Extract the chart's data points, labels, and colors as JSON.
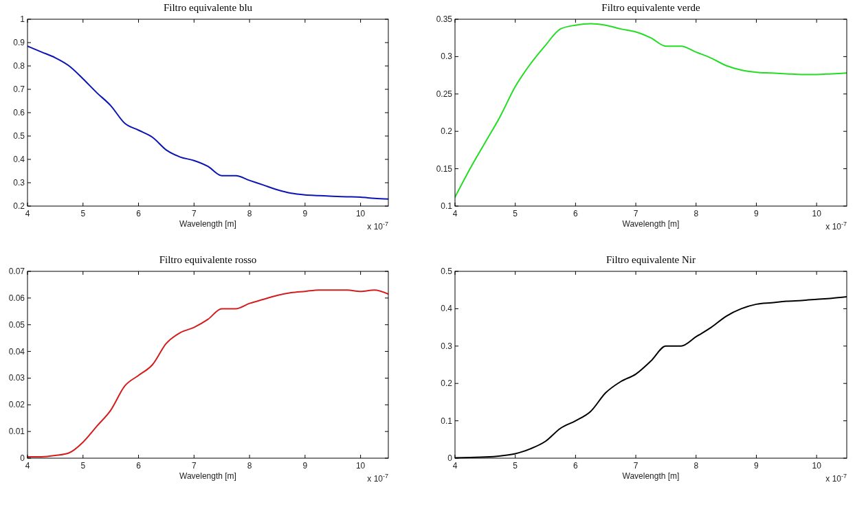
{
  "chart_data": [
    {
      "type": "line",
      "title": "Filtro equivalente blu",
      "xlabel": "Wavelength [m]",
      "annotations": [
        "x 10$^{-7}$"
      ],
      "xlim": [
        4,
        10.5
      ],
      "xticks": [
        4,
        5,
        6,
        7,
        8,
        9,
        10
      ],
      "ylim": [
        0.2,
        1
      ],
      "yticks": [
        0.2,
        0.3,
        0.4,
        0.5,
        0.6,
        0.7,
        0.8,
        0.9,
        1
      ],
      "grid": false,
      "x": [
        4,
        4.25,
        4.5,
        4.75,
        5,
        5.25,
        5.5,
        5.75,
        6,
        6.25,
        6.5,
        6.75,
        7,
        7.25,
        7.5,
        7.75,
        8,
        8.25,
        8.5,
        8.75,
        9,
        9.25,
        9.5,
        9.75,
        10,
        10.25,
        10.5
      ],
      "series": [
        {
          "color": "#0a14b4",
          "values": [
            0.885,
            0.86,
            0.835,
            0.8,
            0.745,
            0.685,
            0.63,
            0.555,
            0.525,
            0.495,
            0.44,
            0.41,
            0.395,
            0.37,
            0.33,
            0.33,
            0.31,
            0.29,
            0.27,
            0.255,
            0.248,
            0.245,
            0.242,
            0.24,
            0.238,
            0.233,
            0.23
          ]
        }
      ]
    },
    {
      "type": "line",
      "title": "Filtro equivalente verde",
      "xlabel": "Wavelength [m]",
      "annotations": [
        "x 10$^{-7}$"
      ],
      "xlim": [
        4,
        10.5
      ],
      "xticks": [
        4,
        5,
        6,
        7,
        8,
        9,
        10
      ],
      "ylim": [
        0.1,
        0.35
      ],
      "yticks": [
        0.1,
        0.15,
        0.2,
        0.25,
        0.3,
        0.35
      ],
      "grid": false,
      "x": [
        4,
        4.25,
        4.5,
        4.75,
        5,
        5.25,
        5.5,
        5.75,
        6,
        6.25,
        6.5,
        6.75,
        7,
        7.25,
        7.5,
        7.75,
        8,
        8.25,
        8.5,
        8.75,
        9,
        9.25,
        9.5,
        9.75,
        10,
        10.25,
        10.5
      ],
      "series": [
        {
          "color": "#22dd22",
          "values": [
            0.112,
            0.15,
            0.185,
            0.22,
            0.26,
            0.29,
            0.315,
            0.337,
            0.342,
            0.344,
            0.342,
            0.337,
            0.333,
            0.325,
            0.314,
            0.314,
            0.306,
            0.298,
            0.288,
            0.282,
            0.279,
            0.278,
            0.277,
            0.276,
            0.276,
            0.277,
            0.278
          ]
        }
      ]
    },
    {
      "type": "line",
      "title": "Filtro equivalente rosso",
      "xlabel": "Wavelength [m]",
      "annotations": [
        "x 10$^{-7}$"
      ],
      "xlim": [
        4,
        10.5
      ],
      "xticks": [
        4,
        5,
        6,
        7,
        8,
        9,
        10
      ],
      "ylim": [
        0,
        0.07
      ],
      "yticks": [
        0,
        0.01,
        0.02,
        0.03,
        0.04,
        0.05,
        0.06,
        0.07
      ],
      "grid": false,
      "x": [
        4,
        4.25,
        4.5,
        4.75,
        5,
        5.25,
        5.5,
        5.75,
        6,
        6.25,
        6.5,
        6.75,
        7,
        7.25,
        7.5,
        7.75,
        8,
        8.25,
        8.5,
        8.75,
        9,
        9.25,
        9.5,
        9.75,
        10,
        10.25,
        10.5
      ],
      "series": [
        {
          "color": "#d41c1c",
          "values": [
            0.0005,
            0.0005,
            0.001,
            0.002,
            0.006,
            0.012,
            0.018,
            0.027,
            0.031,
            0.035,
            0.043,
            0.047,
            0.049,
            0.052,
            0.056,
            0.056,
            0.058,
            0.0595,
            0.061,
            0.062,
            0.0625,
            0.063,
            0.063,
            0.063,
            0.0625,
            0.063,
            0.0615
          ]
        }
      ]
    },
    {
      "type": "line",
      "title": "Filtro equivalente Nir",
      "xlabel": "Wavelength [m]",
      "annotations": [
        "x 10$^{-7}$"
      ],
      "xlim": [
        4,
        10.5
      ],
      "xticks": [
        4,
        5,
        6,
        7,
        8,
        9,
        10
      ],
      "ylim": [
        0,
        0.5
      ],
      "yticks": [
        0,
        0.1,
        0.2,
        0.3,
        0.4,
        0.5
      ],
      "grid": false,
      "x": [
        4,
        4.25,
        4.5,
        4.75,
        5,
        5.25,
        5.5,
        5.75,
        6,
        6.25,
        6.5,
        6.75,
        7,
        7.25,
        7.5,
        7.75,
        8,
        8.25,
        8.5,
        8.75,
        9,
        9.25,
        9.5,
        9.75,
        10,
        10.25,
        10.5
      ],
      "series": [
        {
          "color": "#000000",
          "values": [
            0.001,
            0.002,
            0.003,
            0.006,
            0.012,
            0.025,
            0.045,
            0.08,
            0.1,
            0.125,
            0.175,
            0.205,
            0.225,
            0.26,
            0.3,
            0.3,
            0.325,
            0.35,
            0.38,
            0.4,
            0.412,
            0.416,
            0.42,
            0.422,
            0.425,
            0.428,
            0.432
          ]
        }
      ]
    }
  ]
}
